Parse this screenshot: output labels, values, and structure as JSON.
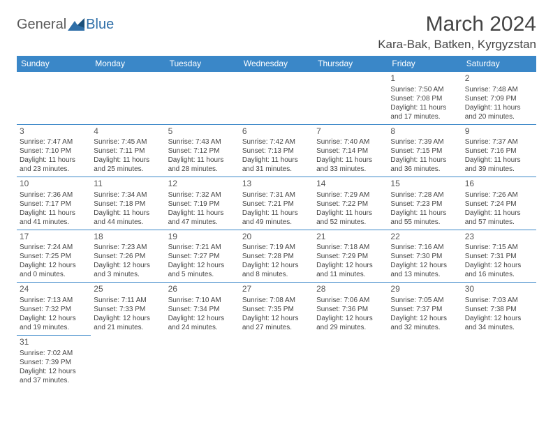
{
  "logo": {
    "text_general": "General",
    "text_blue": "Blue"
  },
  "title": "March 2024",
  "location": "Kara-Bak, Batken, Kyrgyzstan",
  "colors": {
    "header_bg": "#3a87c8",
    "header_text": "#ffffff",
    "cell_border": "#3a87c8",
    "text": "#444444",
    "page_bg": "#ffffff"
  },
  "weekdays": [
    "Sunday",
    "Monday",
    "Tuesday",
    "Wednesday",
    "Thursday",
    "Friday",
    "Saturday"
  ],
  "weeks": [
    [
      null,
      null,
      null,
      null,
      null,
      {
        "day": "1",
        "sunrise": "Sunrise: 7:50 AM",
        "sunset": "Sunset: 7:08 PM",
        "daylight1": "Daylight: 11 hours",
        "daylight2": "and 17 minutes."
      },
      {
        "day": "2",
        "sunrise": "Sunrise: 7:48 AM",
        "sunset": "Sunset: 7:09 PM",
        "daylight1": "Daylight: 11 hours",
        "daylight2": "and 20 minutes."
      }
    ],
    [
      {
        "day": "3",
        "sunrise": "Sunrise: 7:47 AM",
        "sunset": "Sunset: 7:10 PM",
        "daylight1": "Daylight: 11 hours",
        "daylight2": "and 23 minutes."
      },
      {
        "day": "4",
        "sunrise": "Sunrise: 7:45 AM",
        "sunset": "Sunset: 7:11 PM",
        "daylight1": "Daylight: 11 hours",
        "daylight2": "and 25 minutes."
      },
      {
        "day": "5",
        "sunrise": "Sunrise: 7:43 AM",
        "sunset": "Sunset: 7:12 PM",
        "daylight1": "Daylight: 11 hours",
        "daylight2": "and 28 minutes."
      },
      {
        "day": "6",
        "sunrise": "Sunrise: 7:42 AM",
        "sunset": "Sunset: 7:13 PM",
        "daylight1": "Daylight: 11 hours",
        "daylight2": "and 31 minutes."
      },
      {
        "day": "7",
        "sunrise": "Sunrise: 7:40 AM",
        "sunset": "Sunset: 7:14 PM",
        "daylight1": "Daylight: 11 hours",
        "daylight2": "and 33 minutes."
      },
      {
        "day": "8",
        "sunrise": "Sunrise: 7:39 AM",
        "sunset": "Sunset: 7:15 PM",
        "daylight1": "Daylight: 11 hours",
        "daylight2": "and 36 minutes."
      },
      {
        "day": "9",
        "sunrise": "Sunrise: 7:37 AM",
        "sunset": "Sunset: 7:16 PM",
        "daylight1": "Daylight: 11 hours",
        "daylight2": "and 39 minutes."
      }
    ],
    [
      {
        "day": "10",
        "sunrise": "Sunrise: 7:36 AM",
        "sunset": "Sunset: 7:17 PM",
        "daylight1": "Daylight: 11 hours",
        "daylight2": "and 41 minutes."
      },
      {
        "day": "11",
        "sunrise": "Sunrise: 7:34 AM",
        "sunset": "Sunset: 7:18 PM",
        "daylight1": "Daylight: 11 hours",
        "daylight2": "and 44 minutes."
      },
      {
        "day": "12",
        "sunrise": "Sunrise: 7:32 AM",
        "sunset": "Sunset: 7:19 PM",
        "daylight1": "Daylight: 11 hours",
        "daylight2": "and 47 minutes."
      },
      {
        "day": "13",
        "sunrise": "Sunrise: 7:31 AM",
        "sunset": "Sunset: 7:21 PM",
        "daylight1": "Daylight: 11 hours",
        "daylight2": "and 49 minutes."
      },
      {
        "day": "14",
        "sunrise": "Sunrise: 7:29 AM",
        "sunset": "Sunset: 7:22 PM",
        "daylight1": "Daylight: 11 hours",
        "daylight2": "and 52 minutes."
      },
      {
        "day": "15",
        "sunrise": "Sunrise: 7:28 AM",
        "sunset": "Sunset: 7:23 PM",
        "daylight1": "Daylight: 11 hours",
        "daylight2": "and 55 minutes."
      },
      {
        "day": "16",
        "sunrise": "Sunrise: 7:26 AM",
        "sunset": "Sunset: 7:24 PM",
        "daylight1": "Daylight: 11 hours",
        "daylight2": "and 57 minutes."
      }
    ],
    [
      {
        "day": "17",
        "sunrise": "Sunrise: 7:24 AM",
        "sunset": "Sunset: 7:25 PM",
        "daylight1": "Daylight: 12 hours",
        "daylight2": "and 0 minutes."
      },
      {
        "day": "18",
        "sunrise": "Sunrise: 7:23 AM",
        "sunset": "Sunset: 7:26 PM",
        "daylight1": "Daylight: 12 hours",
        "daylight2": "and 3 minutes."
      },
      {
        "day": "19",
        "sunrise": "Sunrise: 7:21 AM",
        "sunset": "Sunset: 7:27 PM",
        "daylight1": "Daylight: 12 hours",
        "daylight2": "and 5 minutes."
      },
      {
        "day": "20",
        "sunrise": "Sunrise: 7:19 AM",
        "sunset": "Sunset: 7:28 PM",
        "daylight1": "Daylight: 12 hours",
        "daylight2": "and 8 minutes."
      },
      {
        "day": "21",
        "sunrise": "Sunrise: 7:18 AM",
        "sunset": "Sunset: 7:29 PM",
        "daylight1": "Daylight: 12 hours",
        "daylight2": "and 11 minutes."
      },
      {
        "day": "22",
        "sunrise": "Sunrise: 7:16 AM",
        "sunset": "Sunset: 7:30 PM",
        "daylight1": "Daylight: 12 hours",
        "daylight2": "and 13 minutes."
      },
      {
        "day": "23",
        "sunrise": "Sunrise: 7:15 AM",
        "sunset": "Sunset: 7:31 PM",
        "daylight1": "Daylight: 12 hours",
        "daylight2": "and 16 minutes."
      }
    ],
    [
      {
        "day": "24",
        "sunrise": "Sunrise: 7:13 AM",
        "sunset": "Sunset: 7:32 PM",
        "daylight1": "Daylight: 12 hours",
        "daylight2": "and 19 minutes."
      },
      {
        "day": "25",
        "sunrise": "Sunrise: 7:11 AM",
        "sunset": "Sunset: 7:33 PM",
        "daylight1": "Daylight: 12 hours",
        "daylight2": "and 21 minutes."
      },
      {
        "day": "26",
        "sunrise": "Sunrise: 7:10 AM",
        "sunset": "Sunset: 7:34 PM",
        "daylight1": "Daylight: 12 hours",
        "daylight2": "and 24 minutes."
      },
      {
        "day": "27",
        "sunrise": "Sunrise: 7:08 AM",
        "sunset": "Sunset: 7:35 PM",
        "daylight1": "Daylight: 12 hours",
        "daylight2": "and 27 minutes."
      },
      {
        "day": "28",
        "sunrise": "Sunrise: 7:06 AM",
        "sunset": "Sunset: 7:36 PM",
        "daylight1": "Daylight: 12 hours",
        "daylight2": "and 29 minutes."
      },
      {
        "day": "29",
        "sunrise": "Sunrise: 7:05 AM",
        "sunset": "Sunset: 7:37 PM",
        "daylight1": "Daylight: 12 hours",
        "daylight2": "and 32 minutes."
      },
      {
        "day": "30",
        "sunrise": "Sunrise: 7:03 AM",
        "sunset": "Sunset: 7:38 PM",
        "daylight1": "Daylight: 12 hours",
        "daylight2": "and 34 minutes."
      }
    ],
    [
      {
        "day": "31",
        "sunrise": "Sunrise: 7:02 AM",
        "sunset": "Sunset: 7:39 PM",
        "daylight1": "Daylight: 12 hours",
        "daylight2": "and 37 minutes."
      },
      null,
      null,
      null,
      null,
      null,
      null
    ]
  ]
}
